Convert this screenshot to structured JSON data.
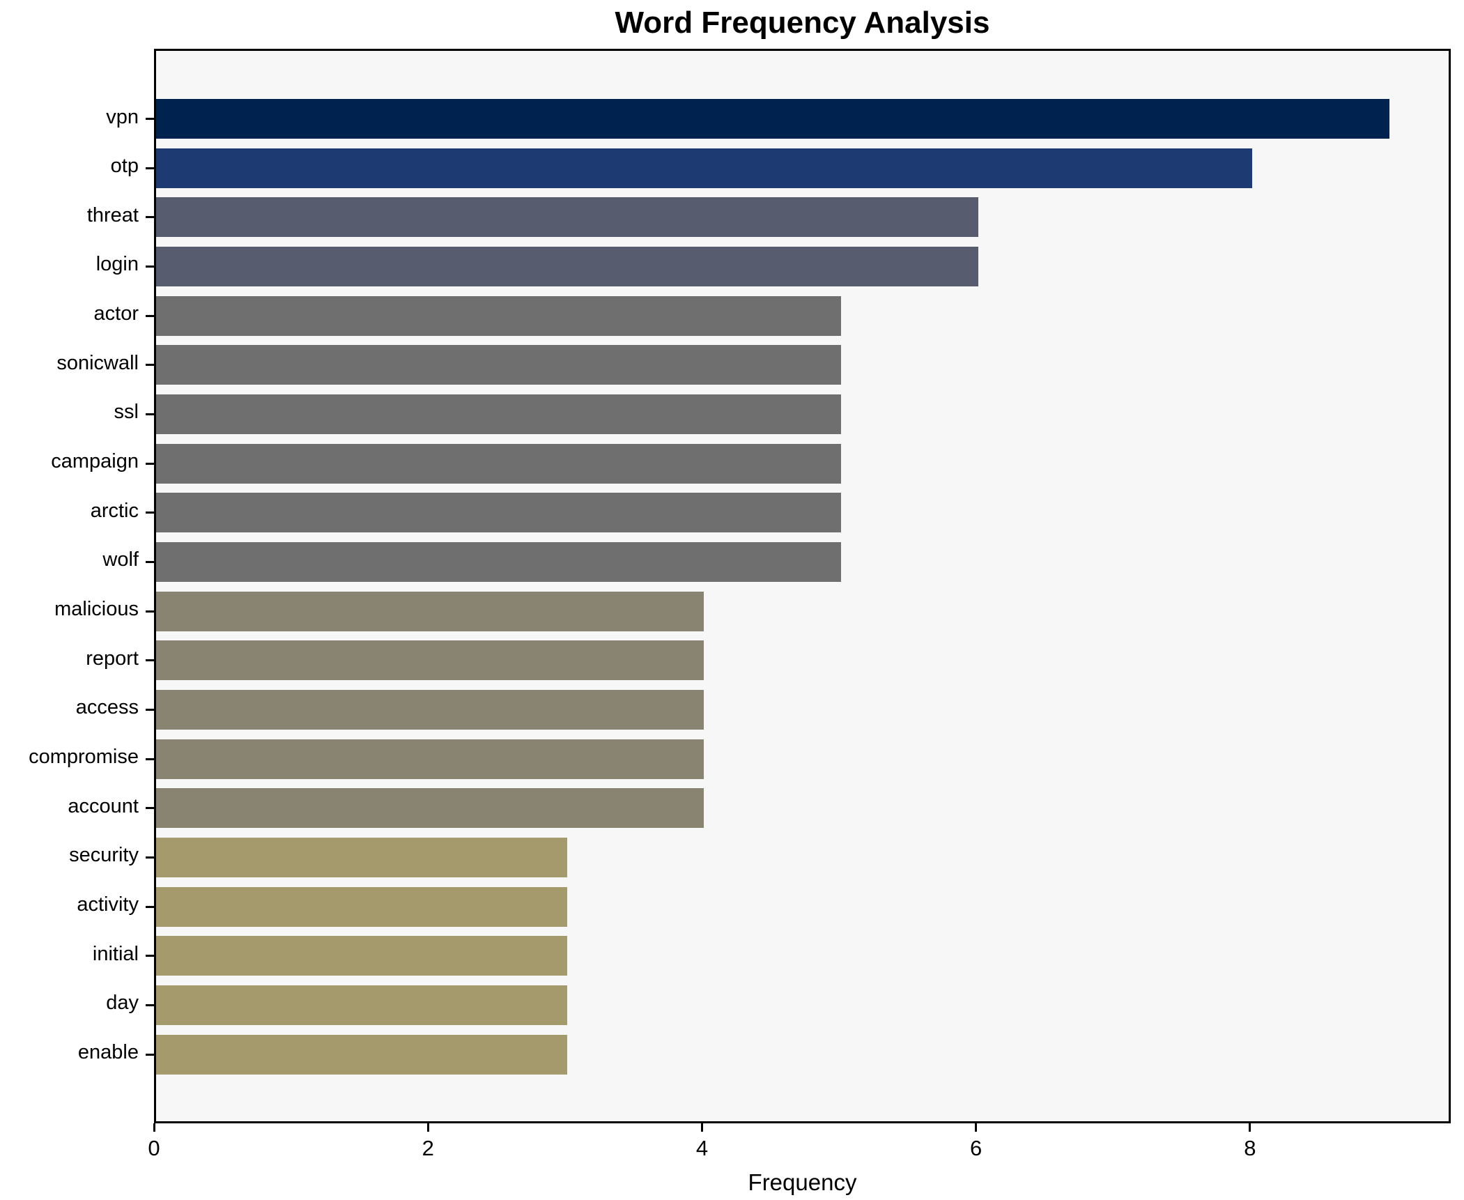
{
  "chart_data": {
    "type": "bar",
    "orientation": "horizontal",
    "title": "Word Frequency Analysis",
    "xlabel": "Frequency",
    "ylabel": "",
    "xlim": [
      0,
      9.45
    ],
    "xticks": [
      0,
      2,
      4,
      6,
      8
    ],
    "grid": false,
    "legend": null,
    "categories": [
      "vpn",
      "otp",
      "threat",
      "login",
      "actor",
      "sonicwall",
      "ssl",
      "campaign",
      "arctic",
      "wolf",
      "malicious",
      "report",
      "access",
      "compromise",
      "account",
      "security",
      "activity",
      "initial",
      "day",
      "enable"
    ],
    "values": [
      9,
      8,
      6,
      6,
      5,
      5,
      5,
      5,
      5,
      5,
      4,
      4,
      4,
      4,
      4,
      3,
      3,
      3,
      3,
      3
    ],
    "colors": [
      "#00224e",
      "#1e3a72",
      "#575d6e",
      "#575d6e",
      "#6f6f6f",
      "#6f6f6f",
      "#6f6f6f",
      "#6f6f6f",
      "#6f6f6f",
      "#6f6f6f",
      "#898372",
      "#898372",
      "#898372",
      "#898372",
      "#898372",
      "#a49a6c",
      "#a49a6c",
      "#a49a6c",
      "#a49a6c",
      "#a49a6c"
    ],
    "plot_background": "#f7f7f8",
    "figure_background": "#ffffff",
    "spine_color": "#000000",
    "text_color": "#000000"
  }
}
